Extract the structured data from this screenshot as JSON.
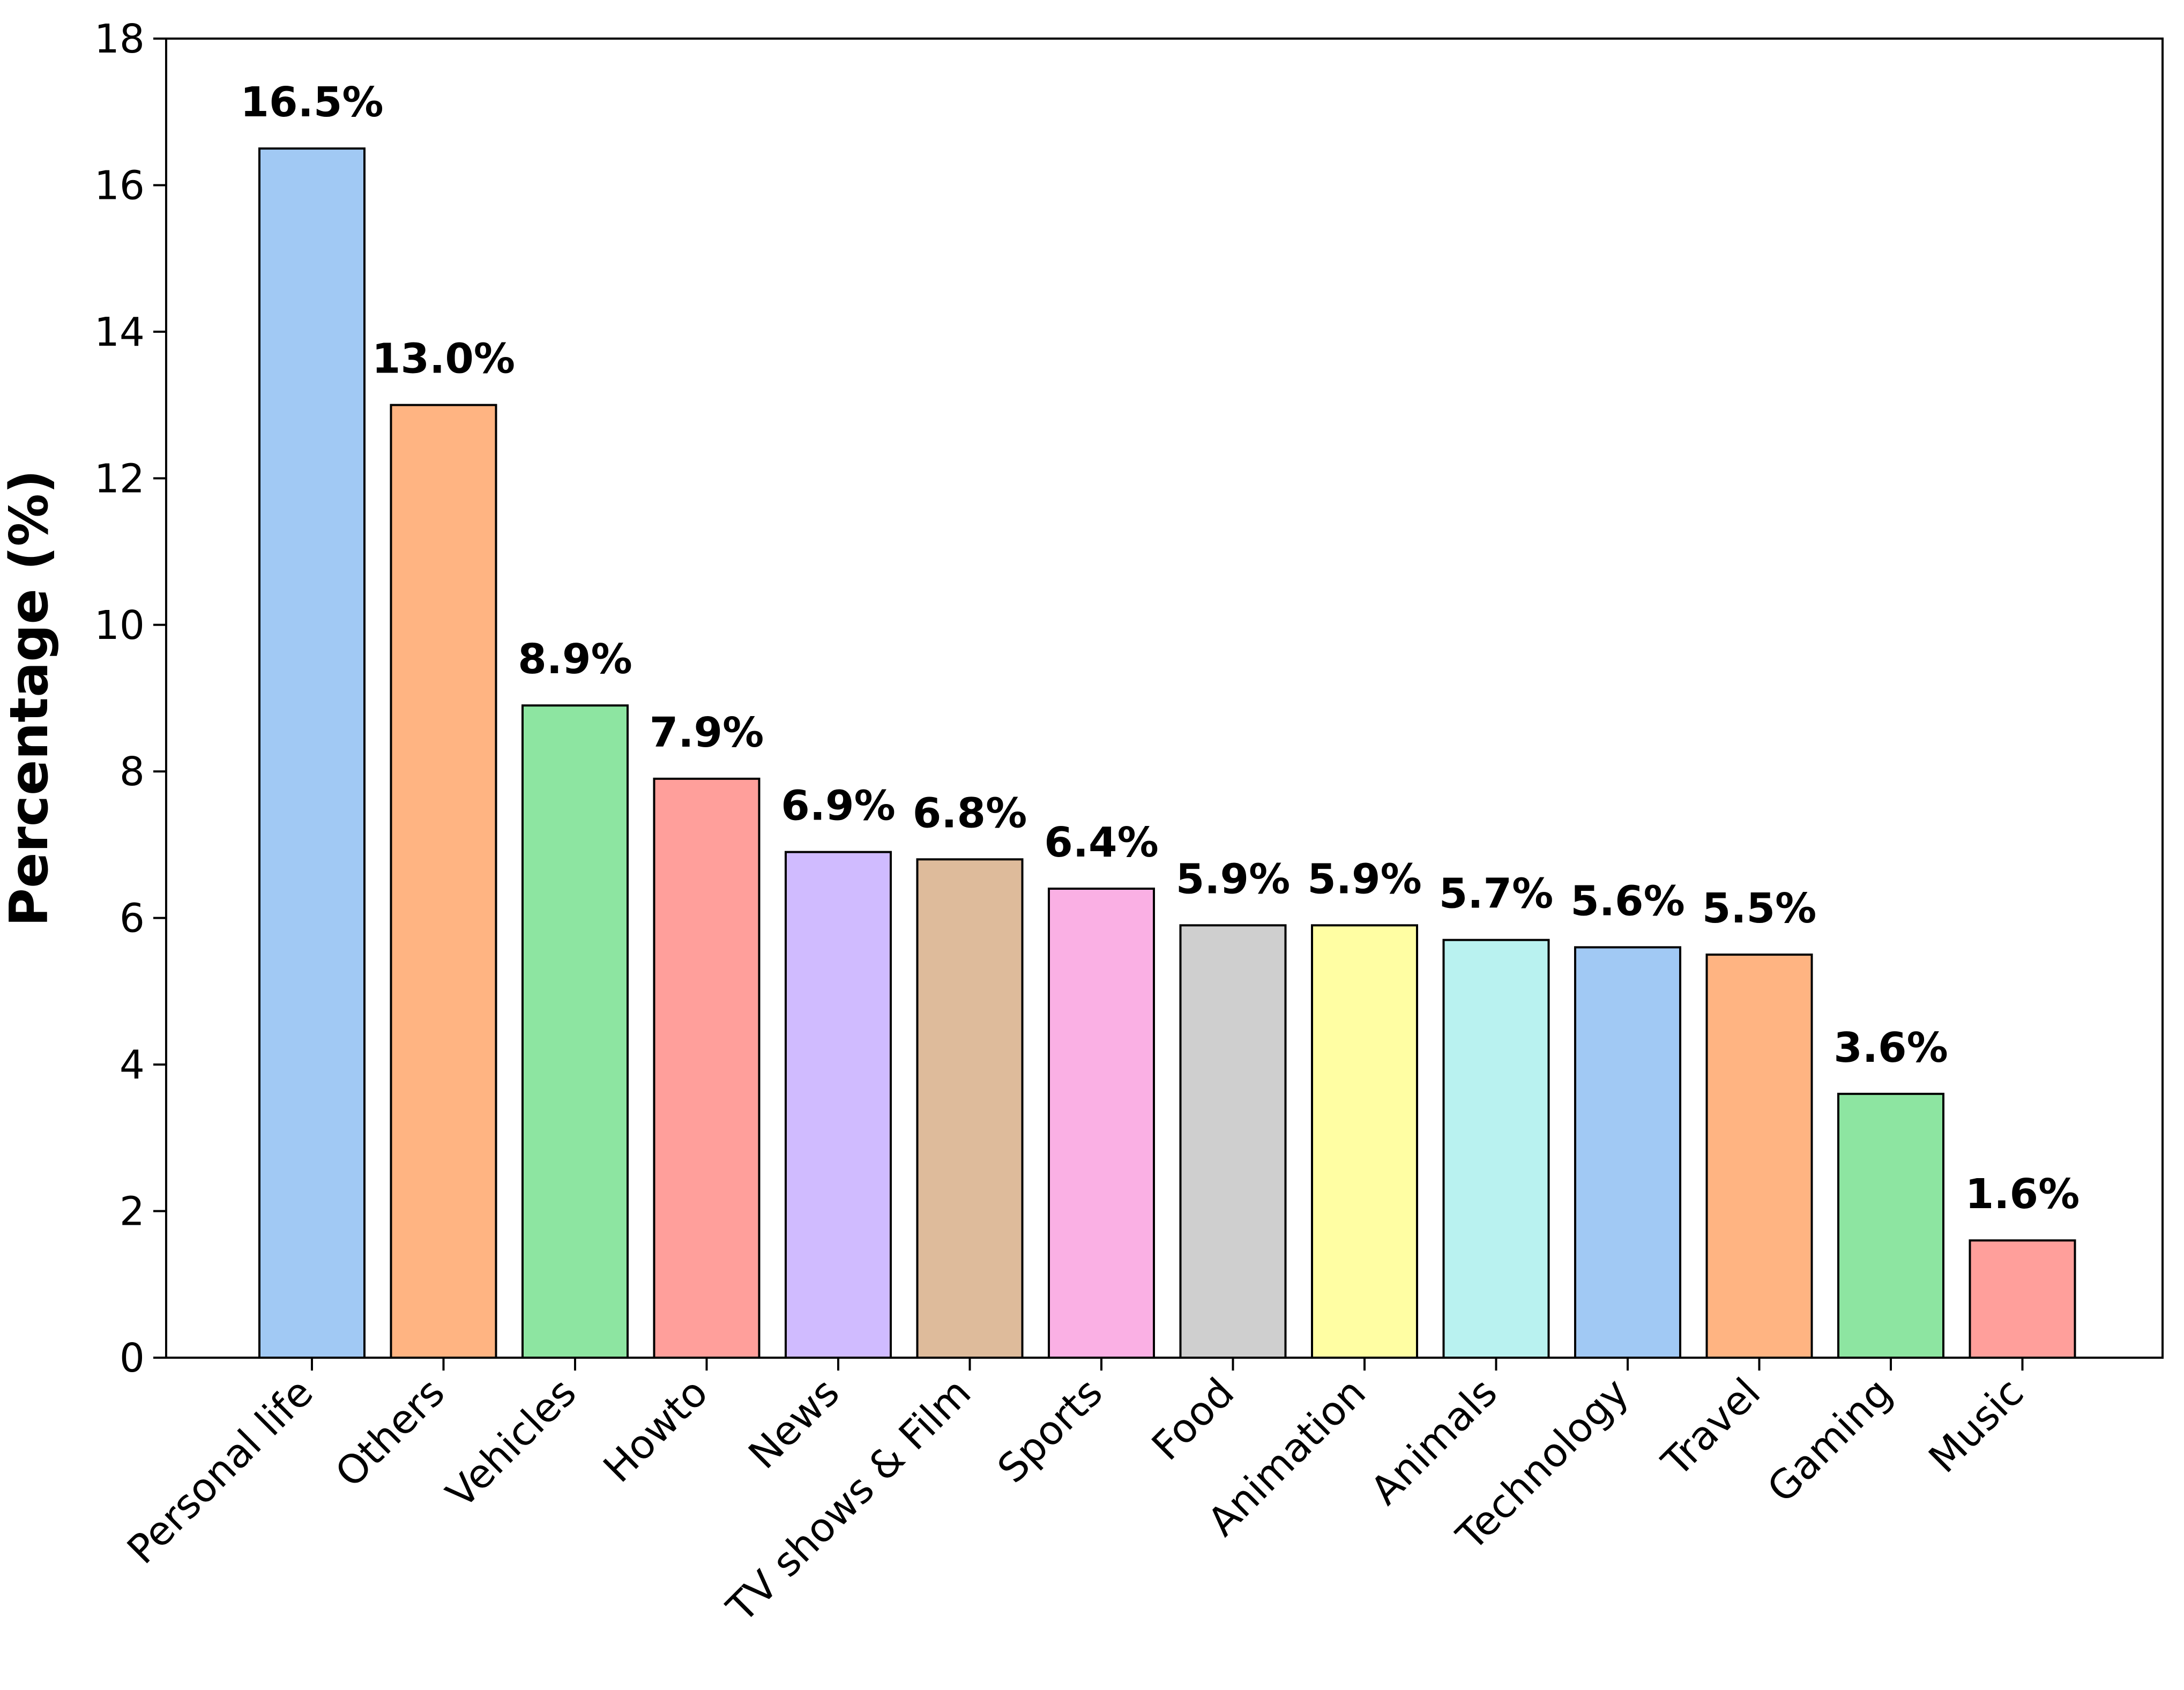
{
  "chart_data": {
    "type": "bar",
    "title": "",
    "xlabel": "",
    "ylabel": "Percentage (%)",
    "ylim": [
      0,
      18
    ],
    "yticks": [
      0,
      2,
      4,
      6,
      8,
      10,
      12,
      14,
      16,
      18
    ],
    "grid": false,
    "categories": [
      "Personal life",
      "Others",
      "Vehicles",
      "Howto",
      "News",
      "TV shows & Film",
      "Sports",
      "Food",
      "Animation",
      "Animals",
      "Technology",
      "Travel",
      "Gaming",
      "Music"
    ],
    "values": [
      16.5,
      13.0,
      8.9,
      7.9,
      6.9,
      6.8,
      6.4,
      5.9,
      5.9,
      5.7,
      5.6,
      5.5,
      3.6,
      1.6
    ],
    "value_labels": [
      "16.5%",
      "13.0%",
      "8.9%",
      "7.9%",
      "6.9%",
      "6.8%",
      "6.4%",
      "5.9%",
      "5.9%",
      "5.7%",
      "5.6%",
      "5.5%",
      "3.6%",
      "1.6%"
    ],
    "colors": [
      "#a1c9f4",
      "#ffb482",
      "#8de5a1",
      "#ff9f9b",
      "#d0bbff",
      "#debb9b",
      "#fab0e4",
      "#cfcfcf",
      "#fffea3",
      "#b9f2f0",
      "#a1c9f4",
      "#ffb482",
      "#8de5a1",
      "#ff9f9b"
    ]
  }
}
